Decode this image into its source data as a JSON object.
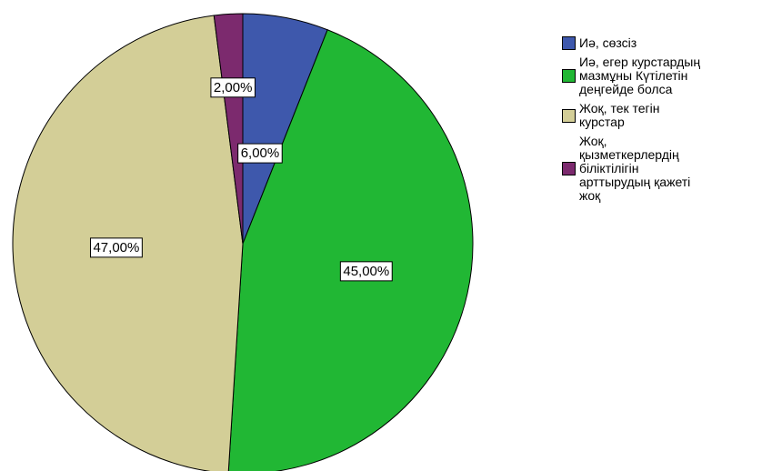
{
  "chart_data": {
    "type": "pie",
    "title": "",
    "start_angle_deg": 0,
    "direction": "clockwise",
    "slices": [
      {
        "label": "Иә, сөзсіз",
        "value": 6.0,
        "display": "6,00%",
        "color": "#3e58ac"
      },
      {
        "label": "Иә, егер курстардың\nмазмұны Күтілетін\nдеңгейде болса",
        "value": 45.0,
        "display": "45,00%",
        "color": "#21b734"
      },
      {
        "label": "Жоқ, тек тегін\nкурстар",
        "value": 47.0,
        "display": "47,00%",
        "color": "#d3ce97"
      },
      {
        "label": "Жоқ,\nқызметкерлердің\nбіліктілігін\nарттырудың қажеті\nжоқ",
        "value": 2.0,
        "display": "2,00%",
        "color": "#7c2a6e"
      }
    ],
    "legend_position": "right"
  }
}
